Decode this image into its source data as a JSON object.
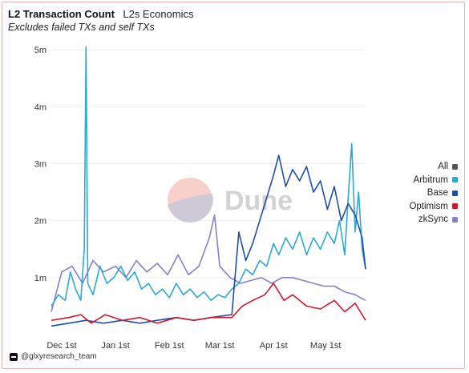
{
  "header": {
    "title": "L2 Transaction Count",
    "subtitle": "L2s Economics",
    "description": "Excludes failed TXs and self TXs"
  },
  "watermark": {
    "text": "Dune"
  },
  "footer": {
    "handle": "@glxyresearch_team"
  },
  "legend": [
    {
      "label": "All",
      "color": "#555555"
    },
    {
      "label": "Arbitrum",
      "color": "#2ea8d6"
    },
    {
      "label": "Base",
      "color": "#1e4ea8"
    },
    {
      "label": "Optimism",
      "color": "#d0192f"
    },
    {
      "label": "zkSync",
      "color": "#8680c9"
    }
  ],
  "chart_data": {
    "type": "line",
    "x_start": "2023-11-25",
    "x_end": "2024-05-24",
    "xticks": [
      {
        "label": "Dec 1st",
        "date": "2023-12-01"
      },
      {
        "label": "Jan 1st",
        "date": "2024-01-01"
      },
      {
        "label": "Feb 1st",
        "date": "2024-02-01"
      },
      {
        "label": "Mar 1st",
        "date": "2024-03-01"
      },
      {
        "label": "Apr 1st",
        "date": "2024-04-01"
      },
      {
        "label": "May 1st",
        "date": "2024-05-01"
      }
    ],
    "yticks": [
      {
        "label": "1m",
        "value": 1000000
      },
      {
        "label": "2m",
        "value": 2000000
      },
      {
        "label": "3m",
        "value": 3000000
      },
      {
        "label": "4m",
        "value": 4000000
      },
      {
        "label": "5m",
        "value": 5000000
      }
    ],
    "ylim": [
      0,
      5200000
    ],
    "grid": true,
    "legend_position": "right",
    "series": [
      {
        "name": "Arbitrum",
        "color": "#2ea8d6",
        "points": [
          [
            "2023-11-25",
            500000
          ],
          [
            "2023-11-29",
            700000
          ],
          [
            "2023-12-03",
            600000
          ],
          [
            "2023-12-06",
            1100000
          ],
          [
            "2023-12-09",
            800000
          ],
          [
            "2023-12-12",
            600000
          ],
          [
            "2023-12-14",
            1500000
          ],
          [
            "2023-12-15",
            5050000
          ],
          [
            "2023-12-16",
            900000
          ],
          [
            "2023-12-19",
            700000
          ],
          [
            "2023-12-23",
            1200000
          ],
          [
            "2023-12-27",
            900000
          ],
          [
            "2023-12-31",
            1000000
          ],
          [
            "2024-01-04",
            1200000
          ],
          [
            "2024-01-08",
            950000
          ],
          [
            "2024-01-12",
            1100000
          ],
          [
            "2024-01-16",
            800000
          ],
          [
            "2024-01-20",
            900000
          ],
          [
            "2024-01-24",
            700000
          ],
          [
            "2024-01-28",
            800000
          ],
          [
            "2024-02-01",
            650000
          ],
          [
            "2024-02-05",
            900000
          ],
          [
            "2024-02-09",
            700000
          ],
          [
            "2024-02-13",
            800000
          ],
          [
            "2024-02-17",
            650000
          ],
          [
            "2024-02-21",
            750000
          ],
          [
            "2024-02-25",
            600000
          ],
          [
            "2024-02-29",
            700000
          ],
          [
            "2024-03-04",
            650000
          ],
          [
            "2024-03-08",
            800000
          ],
          [
            "2024-03-12",
            900000
          ],
          [
            "2024-03-16",
            1150000
          ],
          [
            "2024-03-20",
            1050000
          ],
          [
            "2024-03-24",
            1300000
          ],
          [
            "2024-03-28",
            1200000
          ],
          [
            "2024-04-01",
            1600000
          ],
          [
            "2024-04-04",
            1400000
          ],
          [
            "2024-04-08",
            1700000
          ],
          [
            "2024-04-12",
            1500000
          ],
          [
            "2024-04-16",
            1800000
          ],
          [
            "2024-04-20",
            1400000
          ],
          [
            "2024-04-24",
            1700000
          ],
          [
            "2024-04-28",
            1500000
          ],
          [
            "2024-05-02",
            1800000
          ],
          [
            "2024-05-06",
            1600000
          ],
          [
            "2024-05-09",
            2000000
          ],
          [
            "2024-05-12",
            1400000
          ],
          [
            "2024-05-14",
            2400000
          ],
          [
            "2024-05-16",
            3350000
          ],
          [
            "2024-05-18",
            1800000
          ],
          [
            "2024-05-20",
            2500000
          ],
          [
            "2024-05-22",
            1500000
          ],
          [
            "2024-05-24",
            1150000
          ]
        ]
      },
      {
        "name": "Base",
        "color": "#1e4ea8",
        "points": [
          [
            "2023-11-25",
            150000
          ],
          [
            "2023-12-05",
            200000
          ],
          [
            "2023-12-15",
            250000
          ],
          [
            "2023-12-25",
            200000
          ],
          [
            "2024-01-05",
            250000
          ],
          [
            "2024-01-15",
            200000
          ],
          [
            "2024-01-25",
            250000
          ],
          [
            "2024-02-05",
            300000
          ],
          [
            "2024-02-15",
            250000
          ],
          [
            "2024-02-25",
            300000
          ],
          [
            "2024-03-08",
            350000
          ],
          [
            "2024-03-12",
            1800000
          ],
          [
            "2024-03-16",
            1300000
          ],
          [
            "2024-03-20",
            1600000
          ],
          [
            "2024-03-24",
            2000000
          ],
          [
            "2024-03-28",
            2400000
          ],
          [
            "2024-04-01",
            2800000
          ],
          [
            "2024-04-04",
            3150000
          ],
          [
            "2024-04-08",
            2600000
          ],
          [
            "2024-04-12",
            2900000
          ],
          [
            "2024-04-16",
            2700000
          ],
          [
            "2024-04-20",
            2950000
          ],
          [
            "2024-04-24",
            2500000
          ],
          [
            "2024-04-28",
            2700000
          ],
          [
            "2024-05-02",
            2200000
          ],
          [
            "2024-05-06",
            2600000
          ],
          [
            "2024-05-10",
            2000000
          ],
          [
            "2024-05-14",
            2300000
          ],
          [
            "2024-05-18",
            2100000
          ],
          [
            "2024-05-22",
            1700000
          ],
          [
            "2024-05-24",
            1150000
          ]
        ]
      },
      {
        "name": "Optimism",
        "color": "#d0192f",
        "points": [
          [
            "2023-11-25",
            250000
          ],
          [
            "2023-12-05",
            300000
          ],
          [
            "2023-12-12",
            350000
          ],
          [
            "2023-12-18",
            200000
          ],
          [
            "2023-12-26",
            350000
          ],
          [
            "2024-01-05",
            250000
          ],
          [
            "2024-01-15",
            300000
          ],
          [
            "2024-01-25",
            200000
          ],
          [
            "2024-02-05",
            300000
          ],
          [
            "2024-02-15",
            250000
          ],
          [
            "2024-02-25",
            300000
          ],
          [
            "2024-03-08",
            300000
          ],
          [
            "2024-03-14",
            500000
          ],
          [
            "2024-03-20",
            600000
          ],
          [
            "2024-03-27",
            700000
          ],
          [
            "2024-04-01",
            900000
          ],
          [
            "2024-04-07",
            600000
          ],
          [
            "2024-04-12",
            700000
          ],
          [
            "2024-04-20",
            500000
          ],
          [
            "2024-04-28",
            450000
          ],
          [
            "2024-05-06",
            600000
          ],
          [
            "2024-05-12",
            400000
          ],
          [
            "2024-05-18",
            550000
          ],
          [
            "2024-05-24",
            250000
          ]
        ]
      },
      {
        "name": "zkSync",
        "color": "#8680c9",
        "points": [
          [
            "2023-11-25",
            400000
          ],
          [
            "2023-12-01",
            1100000
          ],
          [
            "2023-12-07",
            1200000
          ],
          [
            "2023-12-13",
            900000
          ],
          [
            "2023-12-19",
            1300000
          ],
          [
            "2023-12-25",
            1100000
          ],
          [
            "2024-01-01",
            1200000
          ],
          [
            "2024-01-07",
            1000000
          ],
          [
            "2024-01-13",
            1300000
          ],
          [
            "2024-01-19",
            1100000
          ],
          [
            "2024-01-25",
            1250000
          ],
          [
            "2024-01-31",
            1050000
          ],
          [
            "2024-02-06",
            1400000
          ],
          [
            "2024-02-12",
            1050000
          ],
          [
            "2024-02-18",
            1200000
          ],
          [
            "2024-02-24",
            1700000
          ],
          [
            "2024-02-27",
            2100000
          ],
          [
            "2024-03-01",
            1200000
          ],
          [
            "2024-03-07",
            1000000
          ],
          [
            "2024-03-13",
            900000
          ],
          [
            "2024-03-19",
            950000
          ],
          [
            "2024-03-25",
            1000000
          ],
          [
            "2024-03-31",
            900000
          ],
          [
            "2024-04-06",
            1000000
          ],
          [
            "2024-04-12",
            1000000
          ],
          [
            "2024-04-18",
            950000
          ],
          [
            "2024-04-24",
            900000
          ],
          [
            "2024-04-30",
            850000
          ],
          [
            "2024-05-06",
            850000
          ],
          [
            "2024-05-12",
            750000
          ],
          [
            "2024-05-18",
            700000
          ],
          [
            "2024-05-24",
            600000
          ]
        ]
      }
    ]
  }
}
